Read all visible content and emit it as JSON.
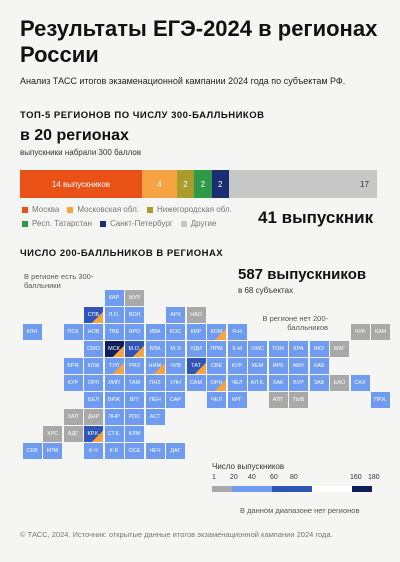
{
  "header": {
    "title": "Результаты ЕГЭ-2024 в регионах России",
    "subtitle": "Анализ ТАСС итогов экзаменационной кампании 2024 года по субъектам РФ."
  },
  "top5": {
    "heading": "ТОП-5 РЕГИОНОВ ПО ЧИСЛУ 300-БАЛЛЬНИКОВ",
    "regions_count": "в 20 регионах",
    "regions_caption": "выпускники набрали 300 баллов",
    "total": "41 выпускник"
  },
  "chart_data": {
    "type": "bar",
    "categories": [
      "Москва",
      "Московская обл.",
      "Нижегородская обл.",
      "Респ. Татарстан",
      "Санкт-Петербург",
      "Другие"
    ],
    "values": [
      14,
      4,
      2,
      2,
      2,
      17
    ],
    "value_labels": [
      "14 выпускников",
      "4",
      "2",
      "2",
      "2",
      "17"
    ],
    "colors": [
      "#ea5117",
      "#f6a442",
      "#a89c2d",
      "#2e9a47",
      "#1d2c73",
      "#c7c7c7"
    ]
  },
  "map": {
    "heading": "ЧИСЛО 200-БАЛЛЬНИКОВ В РЕГИОНАХ",
    "total": "587 выпускников",
    "subjects": "в 68 субъектах",
    "ann_300": "В регионе есть 300-балльники",
    "ann_none": "В регионе нет 200-балльников",
    "tiles": [
      {
        "l": "КАР",
        "c": 1,
        "r": 0,
        "v": "mid"
      },
      {
        "l": "МУР",
        "c": 2,
        "r": 0,
        "v": "none"
      },
      {
        "l": "СПБ",
        "c": 0,
        "r": 1,
        "v": "dark",
        "t": 1
      },
      {
        "l": "Л.О.",
        "c": 1,
        "r": 1,
        "v": "mid"
      },
      {
        "l": "ВОЛ",
        "c": 2,
        "r": 1,
        "v": "mid"
      },
      {
        "l": "АРХ",
        "c": 4,
        "r": 1,
        "v": "mid"
      },
      {
        "l": "НАО",
        "c": 5,
        "r": 1,
        "v": "none"
      },
      {
        "l": "КЛН",
        "c": -3,
        "r": 2,
        "v": "mid"
      },
      {
        "l": "ПСК",
        "c": -1,
        "r": 2,
        "v": "mid"
      },
      {
        "l": "НОВ",
        "c": 0,
        "r": 2,
        "v": "mid"
      },
      {
        "l": "ТВЕ",
        "c": 1,
        "r": 2,
        "v": "mid"
      },
      {
        "l": "ЯРО",
        "c": 2,
        "r": 2,
        "v": "mid"
      },
      {
        "l": "ИВА",
        "c": 3,
        "r": 2,
        "v": "mid"
      },
      {
        "l": "КОС",
        "c": 4,
        "r": 2,
        "v": "mid"
      },
      {
        "l": "КИР",
        "c": 5,
        "r": 2,
        "v": "mid"
      },
      {
        "l": "КОМ",
        "c": 6,
        "r": 2,
        "v": "mid",
        "t": 1
      },
      {
        "l": "Я-Н",
        "c": 7,
        "r": 2,
        "v": "mid"
      },
      {
        "l": "ЧУК",
        "c": 13,
        "r": 2,
        "v": "none"
      },
      {
        "l": "КАМ",
        "c": 14,
        "r": 2,
        "v": "none"
      },
      {
        "l": "СМО",
        "c": 0,
        "r": 3,
        "v": "mid"
      },
      {
        "l": "МСК",
        "c": 1,
        "r": 3,
        "v": "darkest",
        "t": 1
      },
      {
        "l": "М.О.",
        "c": 2,
        "r": 3,
        "v": "dark",
        "t": 1
      },
      {
        "l": "ВЛА",
        "c": 3,
        "r": 3,
        "v": "mid"
      },
      {
        "l": "М-Э",
        "c": 4,
        "r": 3,
        "v": "mid"
      },
      {
        "l": "УДМ",
        "c": 5,
        "r": 3,
        "v": "mid"
      },
      {
        "l": "ПРМ",
        "c": 6,
        "r": 3,
        "v": "mid"
      },
      {
        "l": "Х-М",
        "c": 7,
        "r": 3,
        "v": "mid"
      },
      {
        "l": "ОМС",
        "c": 8,
        "r": 3,
        "v": "mid"
      },
      {
        "l": "ТОМ",
        "c": 9,
        "r": 3,
        "v": "mid"
      },
      {
        "l": "КРА",
        "c": 10,
        "r": 3,
        "v": "mid"
      },
      {
        "l": "ЯКУ",
        "c": 11,
        "r": 3,
        "v": "mid"
      },
      {
        "l": "МАГ",
        "c": 12,
        "r": 3,
        "v": "none"
      },
      {
        "l": "БРЯ",
        "c": -1,
        "r": 4,
        "v": "mid"
      },
      {
        "l": "КЛЖ",
        "c": 0,
        "r": 4,
        "v": "mid"
      },
      {
        "l": "ТУЛ",
        "c": 1,
        "r": 4,
        "v": "mid",
        "t": 1
      },
      {
        "l": "РЯЗ",
        "c": 2,
        "r": 4,
        "v": "mid"
      },
      {
        "l": "НИЖ",
        "c": 3,
        "r": 4,
        "v": "mid",
        "t": 1
      },
      {
        "l": "ЧУВ",
        "c": 4,
        "r": 4,
        "v": "mid"
      },
      {
        "l": "ТАТ",
        "c": 5,
        "r": 4,
        "v": "dark",
        "t": 1
      },
      {
        "l": "СВЕ",
        "c": 6,
        "r": 4,
        "v": "mid"
      },
      {
        "l": "КУР",
        "c": 7,
        "r": 4,
        "v": "mid"
      },
      {
        "l": "КЕМ",
        "c": 8,
        "r": 4,
        "v": "mid"
      },
      {
        "l": "ИРК",
        "c": 9,
        "r": 4,
        "v": "mid"
      },
      {
        "l": "АМУ",
        "c": 10,
        "r": 4,
        "v": "mid"
      },
      {
        "l": "ХАБ",
        "c": 11,
        "r": 4,
        "v": "mid"
      },
      {
        "l": "КУР",
        "c": -1,
        "r": 5,
        "v": "mid"
      },
      {
        "l": "ОРЛ",
        "c": 0,
        "r": 5,
        "v": "mid"
      },
      {
        "l": "ЛИП",
        "c": 1,
        "r": 5,
        "v": "mid"
      },
      {
        "l": "ТАМ",
        "c": 2,
        "r": 5,
        "v": "mid"
      },
      {
        "l": "ПНЗ",
        "c": 3,
        "r": 5,
        "v": "mid"
      },
      {
        "l": "УЛН",
        "c": 4,
        "r": 5,
        "v": "mid"
      },
      {
        "l": "САМ",
        "c": 5,
        "r": 5,
        "v": "mid"
      },
      {
        "l": "ОРН",
        "c": 6,
        "r": 5,
        "v": "mid",
        "t": 1
      },
      {
        "l": "ЧЕЛ",
        "c": 7,
        "r": 5,
        "v": "mid"
      },
      {
        "l": "АЛ.К.",
        "c": 8,
        "r": 5,
        "v": "mid"
      },
      {
        "l": "ХАК",
        "c": 9,
        "r": 5,
        "v": "mid"
      },
      {
        "l": "БУР",
        "c": 10,
        "r": 5,
        "v": "mid"
      },
      {
        "l": "ЗАБ",
        "c": 11,
        "r": 5,
        "v": "mid"
      },
      {
        "l": "ЕАО",
        "c": 12,
        "r": 5,
        "v": "none"
      },
      {
        "l": "САХ",
        "c": 13,
        "r": 5,
        "v": "mid"
      },
      {
        "l": "БЕЛ",
        "c": 0,
        "r": 6,
        "v": "mid"
      },
      {
        "l": "ВРЖ",
        "c": 1,
        "r": 6,
        "v": "mid"
      },
      {
        "l": "ВГГ",
        "c": 2,
        "r": 6,
        "v": "mid"
      },
      {
        "l": "ПЕН",
        "c": 3,
        "r": 6,
        "v": "mid"
      },
      {
        "l": "САР",
        "c": 4,
        "r": 6,
        "v": "mid"
      },
      {
        "l": "ЧЕЛ",
        "c": 6,
        "r": 6,
        "v": "mid"
      },
      {
        "l": "КРГ",
        "c": 7,
        "r": 6,
        "v": "mid"
      },
      {
        "l": "АЛТ",
        "c": 9,
        "r": 6,
        "v": "none"
      },
      {
        "l": "ТЫВ",
        "c": 10,
        "r": 6,
        "v": "none"
      },
      {
        "l": "ПР.К.",
        "c": 14,
        "r": 6,
        "v": "mid"
      },
      {
        "l": "ЗАП",
        "c": -1,
        "r": 7,
        "v": "none"
      },
      {
        "l": "ДНР",
        "c": 0,
        "r": 7,
        "v": "none"
      },
      {
        "l": "ЛНР",
        "c": 1,
        "r": 7,
        "v": "mid"
      },
      {
        "l": "РОС",
        "c": 2,
        "r": 7,
        "v": "mid"
      },
      {
        "l": "АСТ",
        "c": 3,
        "r": 7,
        "v": "mid"
      },
      {
        "l": "ХРС",
        "c": -2,
        "r": 8,
        "v": "none"
      },
      {
        "l": "АДГ",
        "c": -1,
        "r": 8,
        "v": "none"
      },
      {
        "l": "КР.К.",
        "c": 0,
        "r": 8,
        "v": "dark",
        "t": 1
      },
      {
        "l": "СТ.К.",
        "c": 1,
        "r": 8,
        "v": "mid"
      },
      {
        "l": "КЛМ",
        "c": 2,
        "r": 8,
        "v": "mid"
      },
      {
        "l": "СЕВ",
        "c": -3,
        "r": 9,
        "v": "mid"
      },
      {
        "l": "КРМ",
        "c": -2,
        "r": 9,
        "v": "mid"
      },
      {
        "l": "К-Ч",
        "c": 0,
        "r": 9,
        "v": "mid"
      },
      {
        "l": "К-Б",
        "c": 1,
        "r": 9,
        "v": "mid"
      },
      {
        "l": "ОСЕ",
        "c": 2,
        "r": 9,
        "v": "mid"
      },
      {
        "l": "ЧЕЧ",
        "c": 3,
        "r": 9,
        "v": "mid"
      },
      {
        "l": "ДАГ",
        "c": 4,
        "r": 9,
        "v": "mid"
      }
    ]
  },
  "scale": {
    "title": "Число выпускников",
    "ticks": [
      "1",
      "20",
      "40",
      "60",
      "80",
      "160",
      "180"
    ],
    "note": "В данном диапазоне нет регионов",
    "colors": {
      "none": "#a9a9a9",
      "mid": "#6f9bf0",
      "dark": "#2f55b6",
      "darkest": "#0e1f5a",
      "accent": "#f6a442"
    }
  },
  "footer": "© ТАСС, 2024. Источник: открытые данные итогов экзаменационной кампании 2024 года."
}
